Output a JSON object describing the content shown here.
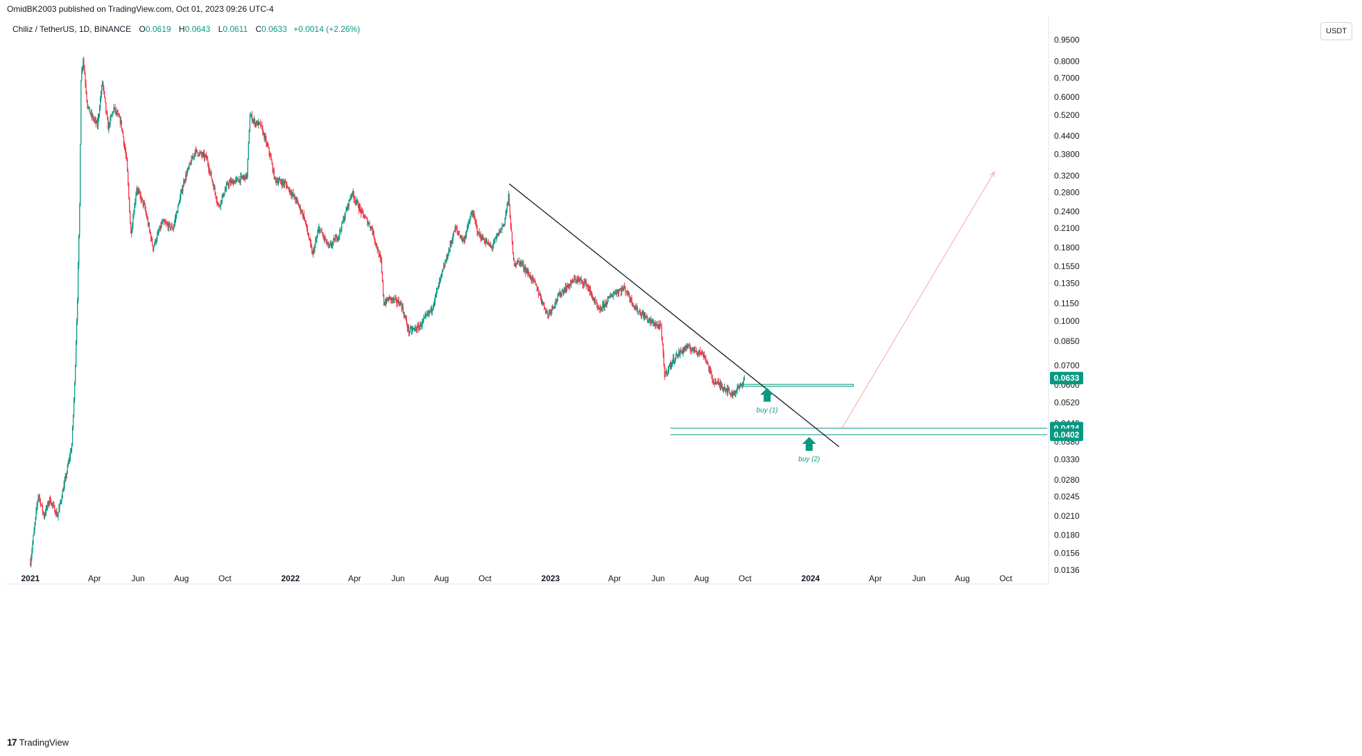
{
  "publisher": "OmidBK2003 published on TradingView.com, Oct 01, 2023 09:26 UTC-4",
  "symbol": {
    "name": "Chiliz / TetherUS, 1D, BINANCE",
    "o_label": "O",
    "o_value": "0.0619",
    "h_label": "H",
    "h_value": "0.0643",
    "l_label": "L",
    "l_value": "0.0611",
    "c_label": "C",
    "c_value": "0.0633",
    "change": "+0.0014 (+2.26%)"
  },
  "currency_button": "USDT",
  "brand": {
    "logo": "17",
    "name": "TradingView"
  },
  "colors": {
    "up": "#089981",
    "down": "#f23645",
    "trendline": "#131722",
    "projection": "#f7a5ab"
  },
  "chart_data": {
    "type": "candlestick",
    "title": "Chiliz / TetherUS, 1D, BINANCE",
    "y_scale": "log",
    "ylim": [
      0.0136,
      0.99
    ],
    "xlim": [
      "2020-12-01",
      "2024-11-28"
    ],
    "y_ticks": [
      "0.9500",
      "0.8000",
      "0.7000",
      "0.6000",
      "0.5200",
      "0.4400",
      "0.3800",
      "0.3200",
      "0.2800",
      "0.2400",
      "0.2100",
      "0.1800",
      "0.1550",
      "0.1350",
      "0.1150",
      "0.1000",
      "0.0850",
      "0.0700",
      "0.0600",
      "0.0520",
      "0.0440",
      "0.0380",
      "0.0330",
      "0.0280",
      "0.0245",
      "0.0210",
      "0.0180",
      "0.0156",
      "0.0136"
    ],
    "x_ticks": [
      {
        "label": "2021",
        "date": "2021-01-01",
        "bold": true
      },
      {
        "label": "Apr",
        "date": "2021-04-01"
      },
      {
        "label": "Jun",
        "date": "2021-06-01"
      },
      {
        "label": "Aug",
        "date": "2021-08-01"
      },
      {
        "label": "Oct",
        "date": "2021-10-01"
      },
      {
        "label": "2022",
        "date": "2022-01-01",
        "bold": true
      },
      {
        "label": "Apr",
        "date": "2022-04-01"
      },
      {
        "label": "Jun",
        "date": "2022-06-01"
      },
      {
        "label": "Aug",
        "date": "2022-08-01"
      },
      {
        "label": "Oct",
        "date": "2022-10-01"
      },
      {
        "label": "2023",
        "date": "2023-01-01",
        "bold": true
      },
      {
        "label": "Apr",
        "date": "2023-04-01"
      },
      {
        "label": "Jun",
        "date": "2023-06-01"
      },
      {
        "label": "Aug",
        "date": "2023-08-01"
      },
      {
        "label": "Oct",
        "date": "2023-10-01"
      },
      {
        "label": "2024",
        "date": "2024-01-01",
        "bold": true
      },
      {
        "label": "Apr",
        "date": "2024-04-01"
      },
      {
        "label": "Jun",
        "date": "2024-06-01"
      },
      {
        "label": "Aug",
        "date": "2024-08-01"
      },
      {
        "label": "Oct",
        "date": "2024-10-01"
      }
    ],
    "price_path": [
      {
        "date": "2021-01-01",
        "price": 0.0145
      },
      {
        "date": "2021-01-12",
        "price": 0.025
      },
      {
        "date": "2021-01-20",
        "price": 0.021
      },
      {
        "date": "2021-01-28",
        "price": 0.024
      },
      {
        "date": "2021-02-08",
        "price": 0.021
      },
      {
        "date": "2021-02-20",
        "price": 0.029
      },
      {
        "date": "2021-02-28",
        "price": 0.037
      },
      {
        "date": "2021-03-04",
        "price": 0.06
      },
      {
        "date": "2021-03-08",
        "price": 0.12
      },
      {
        "date": "2021-03-11",
        "price": 0.25
      },
      {
        "date": "2021-03-13",
        "price": 0.7
      },
      {
        "date": "2021-03-16",
        "price": 0.82
      },
      {
        "date": "2021-03-22",
        "price": 0.56
      },
      {
        "date": "2021-03-27",
        "price": 0.52
      },
      {
        "date": "2021-04-05",
        "price": 0.48
      },
      {
        "date": "2021-04-12",
        "price": 0.68
      },
      {
        "date": "2021-04-20",
        "price": 0.47
      },
      {
        "date": "2021-04-28",
        "price": 0.55
      },
      {
        "date": "2021-05-08",
        "price": 0.49
      },
      {
        "date": "2021-05-16",
        "price": 0.36
      },
      {
        "date": "2021-05-22",
        "price": 0.2
      },
      {
        "date": "2021-05-30",
        "price": 0.29
      },
      {
        "date": "2021-06-10",
        "price": 0.25
      },
      {
        "date": "2021-06-22",
        "price": 0.18
      },
      {
        "date": "2021-07-05",
        "price": 0.22
      },
      {
        "date": "2021-07-20",
        "price": 0.21
      },
      {
        "date": "2021-08-05",
        "price": 0.31
      },
      {
        "date": "2021-08-20",
        "price": 0.39
      },
      {
        "date": "2021-09-05",
        "price": 0.37
      },
      {
        "date": "2021-09-22",
        "price": 0.25
      },
      {
        "date": "2021-10-05",
        "price": 0.3
      },
      {
        "date": "2021-10-20",
        "price": 0.31
      },
      {
        "date": "2021-11-01",
        "price": 0.32
      },
      {
        "date": "2021-11-05",
        "price": 0.52
      },
      {
        "date": "2021-11-12",
        "price": 0.49
      },
      {
        "date": "2021-11-20",
        "price": 0.48
      },
      {
        "date": "2021-12-03",
        "price": 0.38
      },
      {
        "date": "2021-12-10",
        "price": 0.31
      },
      {
        "date": "2021-12-25",
        "price": 0.3
      },
      {
        "date": "2022-01-10",
        "price": 0.26
      },
      {
        "date": "2022-01-20",
        "price": 0.23
      },
      {
        "date": "2022-02-01",
        "price": 0.17
      },
      {
        "date": "2022-02-10",
        "price": 0.21
      },
      {
        "date": "2022-02-24",
        "price": 0.18
      },
      {
        "date": "2022-03-10",
        "price": 0.2
      },
      {
        "date": "2022-03-28",
        "price": 0.28
      },
      {
        "date": "2022-04-10",
        "price": 0.24
      },
      {
        "date": "2022-04-25",
        "price": 0.21
      },
      {
        "date": "2022-05-08",
        "price": 0.16
      },
      {
        "date": "2022-05-12",
        "price": 0.115
      },
      {
        "date": "2022-05-20",
        "price": 0.12
      },
      {
        "date": "2022-06-05",
        "price": 0.115
      },
      {
        "date": "2022-06-16",
        "price": 0.092
      },
      {
        "date": "2022-06-30",
        "price": 0.095
      },
      {
        "date": "2022-07-18",
        "price": 0.11
      },
      {
        "date": "2022-08-08",
        "price": 0.165
      },
      {
        "date": "2022-08-20",
        "price": 0.21
      },
      {
        "date": "2022-09-01",
        "price": 0.19
      },
      {
        "date": "2022-09-13",
        "price": 0.24
      },
      {
        "date": "2022-09-22",
        "price": 0.2
      },
      {
        "date": "2022-10-10",
        "price": 0.18
      },
      {
        "date": "2022-10-28",
        "price": 0.22
      },
      {
        "date": "2022-11-03",
        "price": 0.27
      },
      {
        "date": "2022-11-10",
        "price": 0.16
      },
      {
        "date": "2022-11-20",
        "price": 0.16
      },
      {
        "date": "2022-12-10",
        "price": 0.135
      },
      {
        "date": "2022-12-28",
        "price": 0.105
      },
      {
        "date": "2023-01-15",
        "price": 0.125
      },
      {
        "date": "2023-02-05",
        "price": 0.14
      },
      {
        "date": "2023-02-20",
        "price": 0.135
      },
      {
        "date": "2023-03-10",
        "price": 0.108
      },
      {
        "date": "2023-03-30",
        "price": 0.125
      },
      {
        "date": "2023-04-15",
        "price": 0.13
      },
      {
        "date": "2023-05-01",
        "price": 0.11
      },
      {
        "date": "2023-05-20",
        "price": 0.1
      },
      {
        "date": "2023-06-05",
        "price": 0.095
      },
      {
        "date": "2023-06-10",
        "price": 0.065
      },
      {
        "date": "2023-06-25",
        "price": 0.075
      },
      {
        "date": "2023-07-10",
        "price": 0.081
      },
      {
        "date": "2023-07-25",
        "price": 0.079
      },
      {
        "date": "2023-08-05",
        "price": 0.076
      },
      {
        "date": "2023-08-17",
        "price": 0.062
      },
      {
        "date": "2023-09-05",
        "price": 0.058
      },
      {
        "date": "2023-09-12",
        "price": 0.0555
      },
      {
        "date": "2023-09-25",
        "price": 0.0595
      },
      {
        "date": "2023-09-30",
        "price": 0.0633
      }
    ],
    "trendline": {
      "start": {
        "date": "2022-11-04",
        "price": 0.3
      },
      "end": {
        "date": "2024-02-10",
        "price": 0.0365
      }
    },
    "projection": {
      "start": {
        "date": "2024-02-14",
        "price": 0.0424
      },
      "end": {
        "date": "2024-09-15",
        "price": 0.33
      }
    },
    "zones": [
      {
        "from_date": "2023-09-25",
        "to_date": "2024-03-01",
        "price": 0.0592,
        "price2": 0.0602,
        "color": "#089981"
      },
      {
        "from_date": "2023-06-18",
        "to_date": "2024-11-28",
        "price": 0.0424,
        "color": "#089981"
      },
      {
        "from_date": "2023-06-18",
        "to_date": "2024-11-28",
        "price": 0.0402,
        "color": "#089981"
      }
    ],
    "price_labels": [
      {
        "value": "0.0633",
        "price": 0.0633
      },
      {
        "value": "0.0424",
        "price": 0.0424
      },
      {
        "value": "0.0402",
        "price": 0.0402
      }
    ],
    "annotations": [
      {
        "text": "buy (1)",
        "date": "2023-11-01",
        "price": 0.0535,
        "arrow_price": 0.0585
      },
      {
        "text": "buy (2)",
        "date": "2023-12-30",
        "price": 0.0338,
        "arrow_price": 0.0395
      }
    ]
  }
}
